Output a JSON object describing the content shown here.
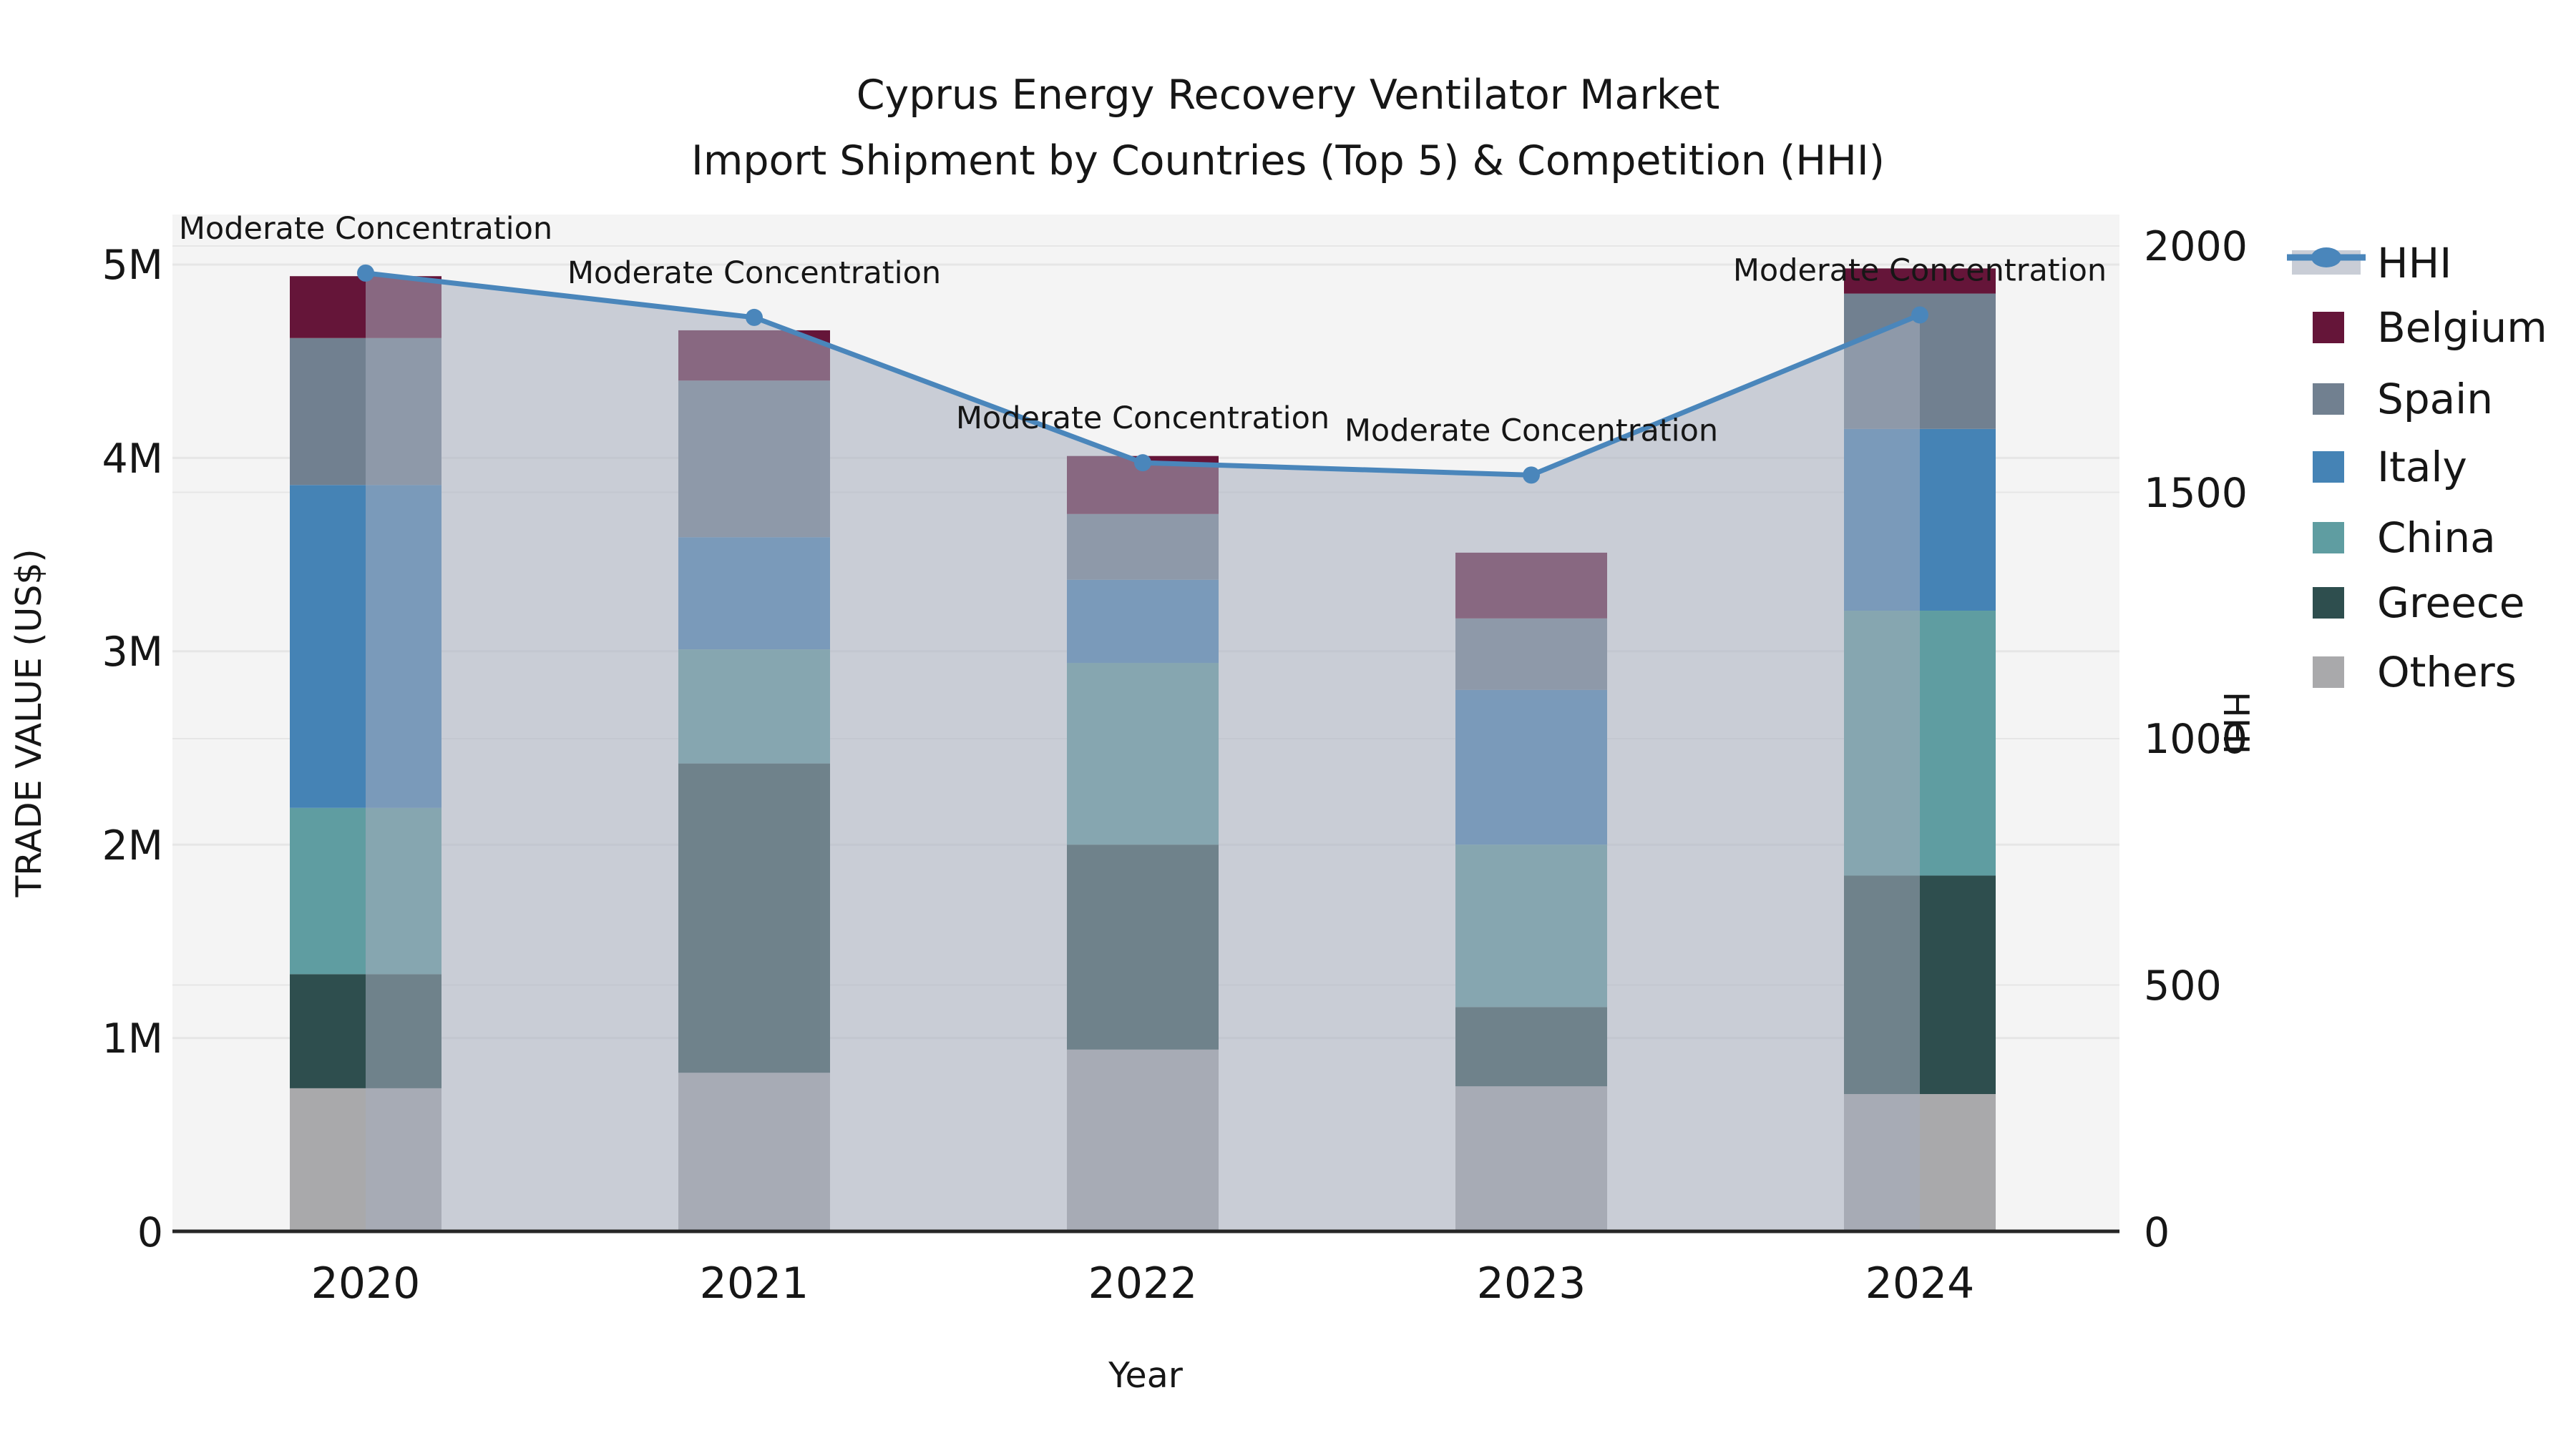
{
  "title_line1": "Cyprus Energy Recovery Ventilator Market",
  "title_line2": "Import Shipment by Countries (Top 5) & Competition (HHI)",
  "chart_data": {
    "type": "bar",
    "subtype": "stacked-bar-with-line",
    "categories": [
      "2020",
      "2021",
      "2022",
      "2023",
      "2024"
    ],
    "series": [
      {
        "name": "Others",
        "color": "#a9a9ab",
        "values": [
          740000,
          820000,
          940000,
          750000,
          710000
        ]
      },
      {
        "name": "Greece",
        "color": "#2e4e4e",
        "values": [
          590000,
          1600000,
          1060000,
          410000,
          1130000
        ]
      },
      {
        "name": "China",
        "color": "#5f9da1",
        "values": [
          860000,
          590000,
          940000,
          840000,
          1370000
        ]
      },
      {
        "name": "Italy",
        "color": "#4583b5",
        "values": [
          1670000,
          580000,
          430000,
          800000,
          940000
        ]
      },
      {
        "name": "Spain",
        "color": "#718090",
        "values": [
          760000,
          810000,
          340000,
          370000,
          700000
        ]
      },
      {
        "name": "Belgium",
        "color": "#651539",
        "values": [
          320000,
          260000,
          300000,
          340000,
          130000
        ]
      }
    ],
    "line_series": {
      "name": "HHI",
      "color": "#4a86bb",
      "area_color": "rgba(166,173,190,0.55)",
      "values": [
        1945,
        1855,
        1560,
        1535,
        1860
      ]
    },
    "annotations": [
      "Moderate Concentration",
      "Moderate Concentration",
      "Moderate Concentration",
      "Moderate Concentration",
      "Moderate Concentration"
    ],
    "xlabel": "Year",
    "ylabel_left": "TRADE VALUE (US$)",
    "ylabel_right": "HHI",
    "ylim_left": [
      0,
      5000000
    ],
    "ylim_right": [
      0,
      2000
    ],
    "yticks_left": [
      "0",
      "1M",
      "2M",
      "3M",
      "4M",
      "5M"
    ],
    "yticks_right": [
      "0",
      "500",
      "1000",
      "1500",
      "2000"
    ],
    "grid": "on",
    "plot_bg": "#f4f4f4",
    "grid_color": "#e6e6e6",
    "legend_position": "right",
    "legend": [
      {
        "label": "HHI"
      },
      {
        "label": "Belgium"
      },
      {
        "label": "Spain"
      },
      {
        "label": "Italy"
      },
      {
        "label": "China"
      },
      {
        "label": "Greece"
      },
      {
        "label": "Others"
      }
    ]
  }
}
